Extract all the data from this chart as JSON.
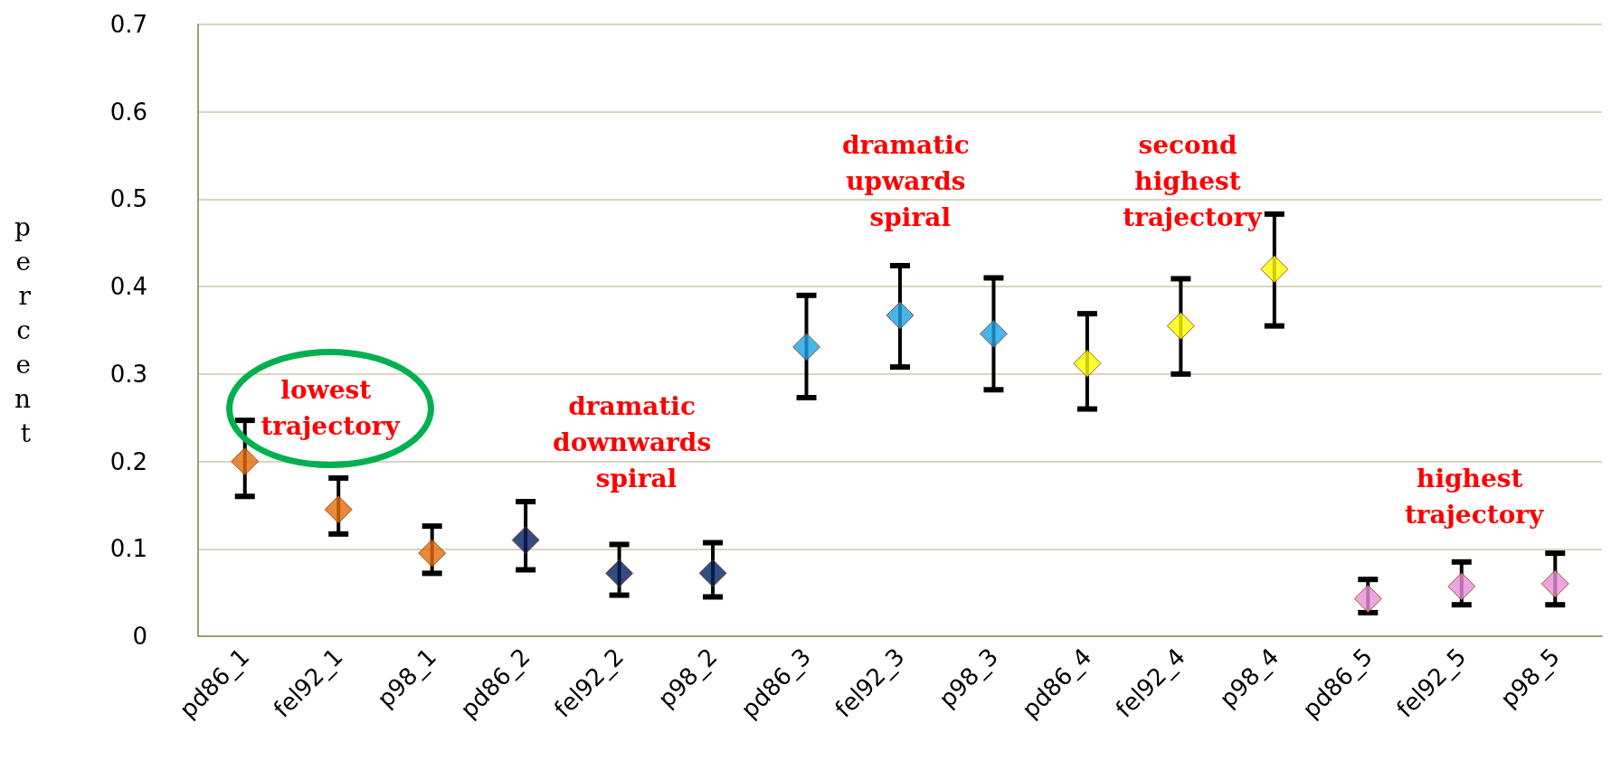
{
  "chart_data": {
    "type": "scatter",
    "ylabel": "percent",
    "categories": [
      "pd86_1",
      "fel92_1",
      "p98_1",
      "pd86_2",
      "fel92_2",
      "p98_2",
      "pd86_3",
      "fel92_3",
      "p98_3",
      "pd86_4",
      "fel92_4",
      "p98_4",
      "pd86_5",
      "fel92_5",
      "p98_5"
    ],
    "values": [
      0.2,
      0.145,
      0.095,
      0.11,
      0.072,
      0.072,
      0.331,
      0.367,
      0.346,
      0.312,
      0.355,
      0.42,
      0.043,
      0.057,
      0.06
    ],
    "errors": [
      [
        0.16,
        0.247
      ],
      [
        0.117,
        0.181
      ],
      [
        0.072,
        0.126
      ],
      [
        0.076,
        0.154
      ],
      [
        0.047,
        0.105
      ],
      [
        0.045,
        0.107
      ],
      [
        0.273,
        0.39
      ],
      [
        0.308,
        0.424
      ],
      [
        0.282,
        0.41
      ],
      [
        0.26,
        0.369
      ],
      [
        0.3,
        0.409
      ],
      [
        0.355,
        0.483
      ],
      [
        0.027,
        0.065
      ],
      [
        0.036,
        0.085
      ],
      [
        0.036,
        0.095
      ]
    ],
    "colors": [
      "#e46c0a",
      "#e46c0a",
      "#e46c0a",
      "#002060",
      "#002060",
      "#002060",
      "#1ba1e2",
      "#1ba1e2",
      "#1ba1e2",
      "#ffff00",
      "#ffff00",
      "#ffff00",
      "#e98ed8",
      "#e98ed8",
      "#e98ed8"
    ],
    "ylim": [
      0,
      0.7
    ],
    "yticks": [
      0,
      0.1,
      0.2,
      0.3,
      0.4,
      0.5,
      0.6,
      0.7
    ],
    "grid": "y",
    "marker": "diamond",
    "annotations": [
      "lowest trajectory",
      "dramatic downwards spiral",
      "dramatic upwards spiral",
      "second highest trajectory",
      "highest trajectory"
    ]
  }
}
